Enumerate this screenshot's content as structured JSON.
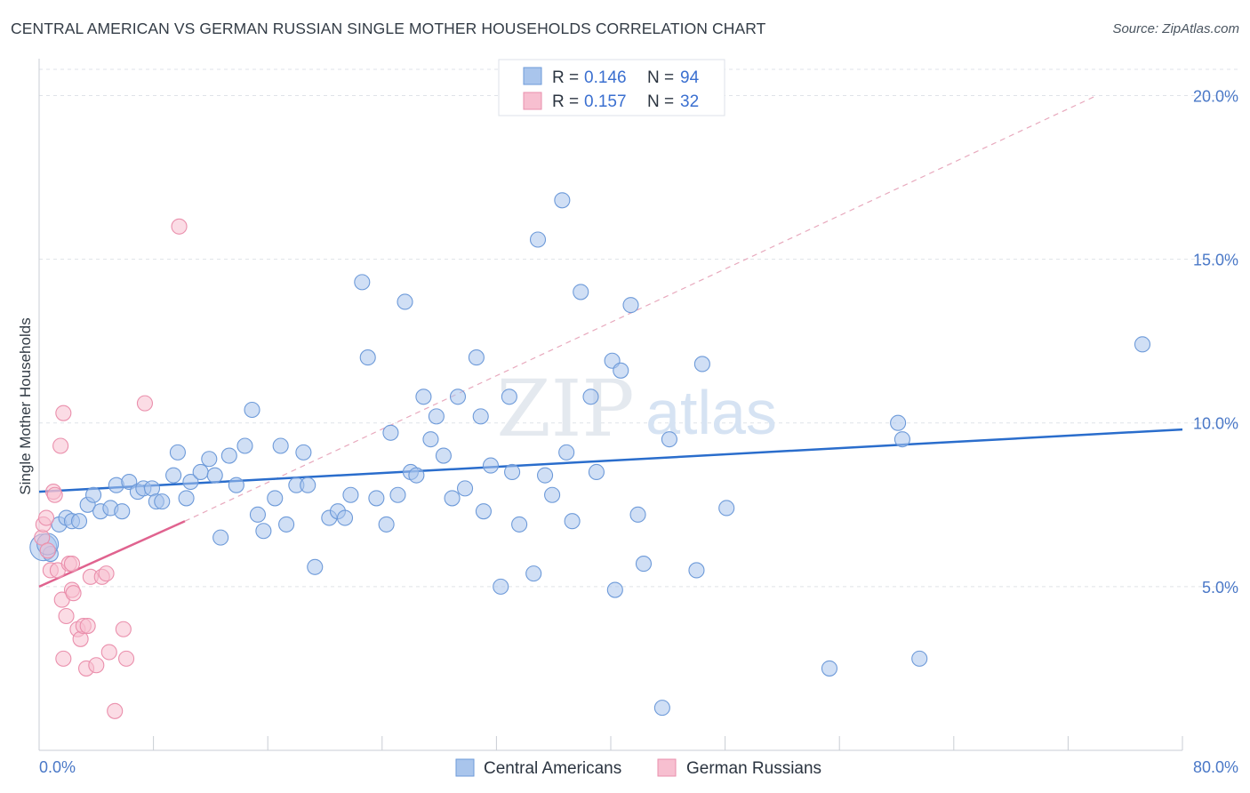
{
  "chart_data": {
    "type": "scatter",
    "title": "CENTRAL AMERICAN VS GERMAN RUSSIAN SINGLE MOTHER HOUSEHOLDS CORRELATION CHART",
    "source": "Source: ZipAtlas.com",
    "xlabel": "",
    "ylabel": "Single Mother Households",
    "xlim": [
      0,
      80
    ],
    "ylim": [
      0,
      20.8
    ],
    "x_tick_labels": [
      "0.0%",
      "80.0%"
    ],
    "y_ticks": [
      5,
      10,
      15,
      20
    ],
    "y_tick_labels": [
      "5.0%",
      "10.0%",
      "15.0%",
      "20.0%"
    ],
    "grid": true,
    "watermark": "ZIPatlas",
    "legend": {
      "entries": [
        {
          "r_label": "R =",
          "r_value": "0.146",
          "n_label": "N =",
          "n_value": "94"
        },
        {
          "r_label": "R =",
          "r_value": "0.157",
          "n_label": "N =",
          "n_value": "32"
        }
      ]
    },
    "series": [
      {
        "name": "Central Americans",
        "color": "#a9c5ec",
        "edge": "#6d9ad9",
        "trend_color": "#2a6dcc",
        "trend": {
          "x": [
            0,
            80
          ],
          "y": [
            7.9,
            9.8
          ]
        },
        "points": [
          [
            0.3,
            6.2
          ],
          [
            0.8,
            6.0
          ],
          [
            1.4,
            6.9
          ],
          [
            1.9,
            7.1
          ],
          [
            2.3,
            7.0
          ],
          [
            2.8,
            7.0
          ],
          [
            3.4,
            7.5
          ],
          [
            3.8,
            7.8
          ],
          [
            4.3,
            7.3
          ],
          [
            5.0,
            7.4
          ],
          [
            5.4,
            8.1
          ],
          [
            5.8,
            7.3
          ],
          [
            6.3,
            8.2
          ],
          [
            6.9,
            7.9
          ],
          [
            7.3,
            8.0
          ],
          [
            7.9,
            8.0
          ],
          [
            8.2,
            7.6
          ],
          [
            8.6,
            7.6
          ],
          [
            9.4,
            8.4
          ],
          [
            9.7,
            9.1
          ],
          [
            10.3,
            7.7
          ],
          [
            10.6,
            8.2
          ],
          [
            11.3,
            8.5
          ],
          [
            11.9,
            8.9
          ],
          [
            12.3,
            8.4
          ],
          [
            12.7,
            6.5
          ],
          [
            13.3,
            9.0
          ],
          [
            13.8,
            8.1
          ],
          [
            14.4,
            9.3
          ],
          [
            14.9,
            10.4
          ],
          [
            15.3,
            7.2
          ],
          [
            15.7,
            6.7
          ],
          [
            16.5,
            7.7
          ],
          [
            16.9,
            9.3
          ],
          [
            17.3,
            6.9
          ],
          [
            18.0,
            8.1
          ],
          [
            18.5,
            9.1
          ],
          [
            18.8,
            8.1
          ],
          [
            19.3,
            5.6
          ],
          [
            20.3,
            7.1
          ],
          [
            20.9,
            7.3
          ],
          [
            21.4,
            7.1
          ],
          [
            21.8,
            7.8
          ],
          [
            22.6,
            14.3
          ],
          [
            23.0,
            12.0
          ],
          [
            23.6,
            7.7
          ],
          [
            24.3,
            6.9
          ],
          [
            24.6,
            9.7
          ],
          [
            25.1,
            7.8
          ],
          [
            25.6,
            13.7
          ],
          [
            26.0,
            8.5
          ],
          [
            26.4,
            8.4
          ],
          [
            26.9,
            10.8
          ],
          [
            27.4,
            9.5
          ],
          [
            27.8,
            10.2
          ],
          [
            28.3,
            9.0
          ],
          [
            28.9,
            7.7
          ],
          [
            29.3,
            10.8
          ],
          [
            29.8,
            8.0
          ],
          [
            30.6,
            12.0
          ],
          [
            30.9,
            10.2
          ],
          [
            31.1,
            7.3
          ],
          [
            31.6,
            8.7
          ],
          [
            32.3,
            5.0
          ],
          [
            32.9,
            10.8
          ],
          [
            33.1,
            8.5
          ],
          [
            33.6,
            6.9
          ],
          [
            34.6,
            5.4
          ],
          [
            34.9,
            15.6
          ],
          [
            35.4,
            8.4
          ],
          [
            35.9,
            7.8
          ],
          [
            36.6,
            16.8
          ],
          [
            36.9,
            9.1
          ],
          [
            37.3,
            7.0
          ],
          [
            37.9,
            14.0
          ],
          [
            38.6,
            10.8
          ],
          [
            39.0,
            8.5
          ],
          [
            40.1,
            11.9
          ],
          [
            40.3,
            4.9
          ],
          [
            40.7,
            11.6
          ],
          [
            41.4,
            13.6
          ],
          [
            41.9,
            7.2
          ],
          [
            42.3,
            5.7
          ],
          [
            43.6,
            1.3
          ],
          [
            44.1,
            9.5
          ],
          [
            46.0,
            5.5
          ],
          [
            46.4,
            11.8
          ],
          [
            48.1,
            7.4
          ],
          [
            55.3,
            2.5
          ],
          [
            60.1,
            10.0
          ],
          [
            60.4,
            9.5
          ],
          [
            61.6,
            2.8
          ],
          [
            77.2,
            12.4
          ],
          [
            0.6,
            6.3
          ]
        ]
      },
      {
        "name": "German Russians",
        "color": "#f7bfd0",
        "edge": "#ea8fac",
        "trend_color": "#e0638f",
        "trend": {
          "x": [
            0,
            10.2
          ],
          "y": [
            5.0,
            7.0
          ]
        },
        "trend_ext": {
          "x": [
            10.2,
            74
          ],
          "y": [
            7.0,
            20.0
          ]
        },
        "points": [
          [
            0.2,
            6.5
          ],
          [
            0.3,
            6.9
          ],
          [
            0.5,
            7.1
          ],
          [
            0.6,
            6.1
          ],
          [
            0.8,
            5.5
          ],
          [
            1.0,
            7.9
          ],
          [
            1.1,
            7.8
          ],
          [
            1.3,
            5.5
          ],
          [
            1.5,
            9.3
          ],
          [
            1.6,
            4.6
          ],
          [
            1.7,
            2.8
          ],
          [
            1.7,
            10.3
          ],
          [
            1.9,
            4.1
          ],
          [
            2.1,
            5.7
          ],
          [
            2.3,
            5.7
          ],
          [
            2.3,
            4.9
          ],
          [
            2.4,
            4.8
          ],
          [
            2.7,
            3.7
          ],
          [
            2.9,
            3.4
          ],
          [
            3.1,
            3.8
          ],
          [
            3.3,
            2.5
          ],
          [
            3.4,
            3.8
          ],
          [
            3.6,
            5.3
          ],
          [
            4.0,
            2.6
          ],
          [
            4.4,
            5.3
          ],
          [
            4.7,
            5.4
          ],
          [
            4.9,
            3.0
          ],
          [
            5.3,
            1.2
          ],
          [
            5.9,
            3.7
          ],
          [
            6.1,
            2.8
          ],
          [
            7.4,
            10.6
          ],
          [
            9.8,
            16.0
          ]
        ]
      }
    ]
  }
}
